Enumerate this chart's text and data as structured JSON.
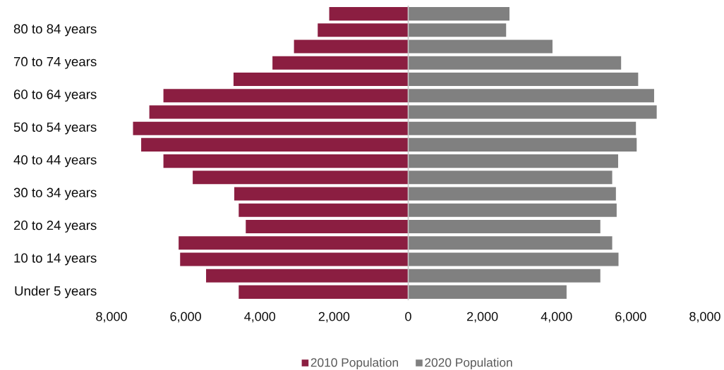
{
  "chart_data": {
    "type": "bar",
    "orientation": "horizontal",
    "stacked": true,
    "categories": [
      null,
      "80 to 84 years",
      null,
      "70 to 74 years",
      null,
      "60 to 64 years",
      null,
      "50 to 54 years",
      null,
      "40 to 44 years",
      null,
      "30 to 34 years",
      null,
      "20 to 24 years",
      null,
      "10 to 14 years",
      null,
      "Under 5 years"
    ],
    "series": [
      {
        "name": "2010 Population",
        "color": "#8b1e41",
        "values": [
          -2130,
          -2440,
          -3080,
          -3660,
          -4710,
          -6600,
          -6980,
          -7420,
          -7200,
          -6600,
          -5810,
          -4690,
          -4570,
          -4380,
          -6190,
          -6150,
          -5450,
          -4570
        ]
      },
      {
        "name": "2020 Population",
        "color": "#808080",
        "values": [
          2730,
          2640,
          3890,
          5740,
          6200,
          6630,
          6700,
          6140,
          6160,
          5660,
          5500,
          5600,
          5620,
          5180,
          5500,
          5670,
          5180,
          4270
        ]
      }
    ],
    "xlim": [
      -8000,
      8000
    ],
    "xticks": [
      {
        "value": -8000,
        "label": "8,000"
      },
      {
        "value": -6000,
        "label": "6,000"
      },
      {
        "value": -4000,
        "label": "4,000"
      },
      {
        "value": -2000,
        "label": "2,000"
      },
      0,
      {
        "value": 2000,
        "label": "2,000"
      },
      {
        "value": 4000,
        "label": "4,000"
      },
      {
        "value": 6000,
        "label": "6,000"
      },
      {
        "value": 8000,
        "label": "8,000"
      }
    ],
    "legend": "bottom"
  }
}
